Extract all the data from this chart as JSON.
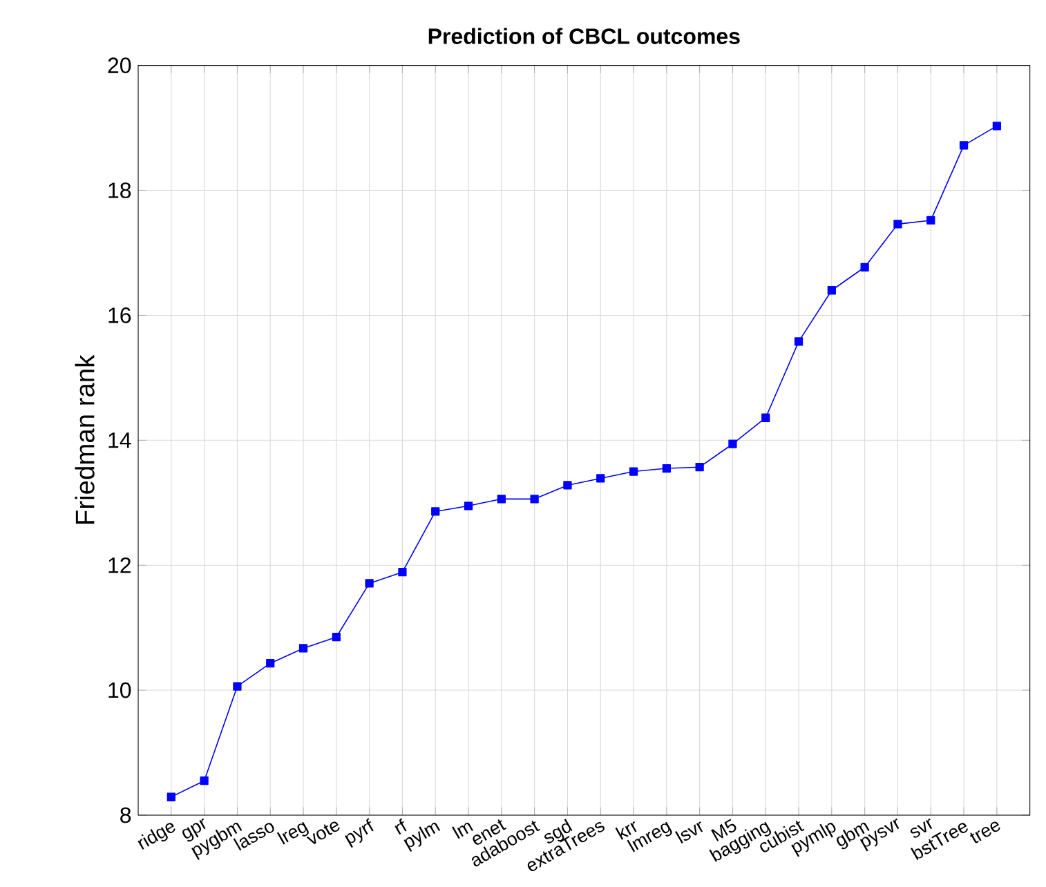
{
  "chart_data": {
    "type": "line",
    "title": "Prediction of CBCL outcomes",
    "ylabel": "Friedman rank",
    "categories": [
      "ridge",
      "gpr",
      "pygbm",
      "lasso",
      "lreg",
      "vote",
      "pyrf",
      "rf",
      "pylm",
      "lm",
      "enet",
      "adaboost",
      "sgd",
      "extraTrees",
      "krr",
      "lmreg",
      "lsvr",
      "M5",
      "bagging",
      "cubist",
      "pymlp",
      "gbm",
      "pysvr",
      "svr",
      "bstTree",
      "tree"
    ],
    "series": [
      {
        "color": "#0000ff",
        "values": [
          8.29,
          8.55,
          10.06,
          10.43,
          10.67,
          10.85,
          11.71,
          11.89,
          12.86,
          12.95,
          13.06,
          13.06,
          13.28,
          13.39,
          13.5,
          13.55,
          13.57,
          13.94,
          14.36,
          15.58,
          16.4,
          16.77,
          17.46,
          17.52,
          18.72,
          19.03
        ]
      }
    ],
    "ylim": [
      8,
      20
    ],
    "yticks": [
      8,
      10,
      12,
      14,
      16,
      18,
      20
    ],
    "grid": true,
    "marker": "square",
    "line_style": "solid"
  }
}
